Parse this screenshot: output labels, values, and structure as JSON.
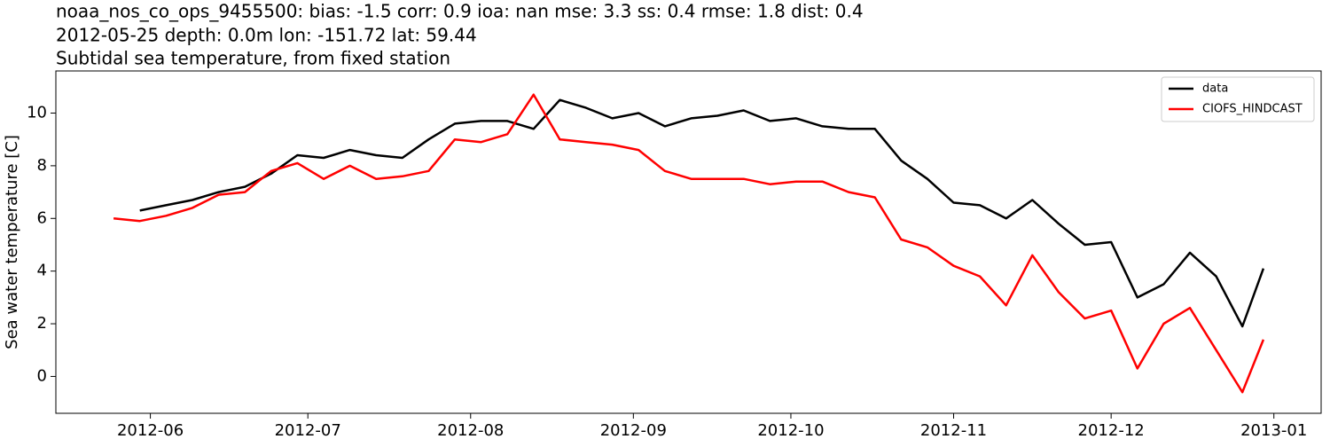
{
  "chart_data": {
    "type": "line",
    "title": "noaa_nos_co_ops_9455500: bias: -1.5  corr: 0.9  ioa: nan  mse: 3.3  ss: 0.4  rmse: 1.8  dist: 0.4",
    "subtitle": "2012-05-25 depth: 0.0m lon: -151.72 lat: 59.44",
    "subtitle2": "Subtidal sea temperature, from fixed station",
    "y_label": "Sea water temperature [C]",
    "legend": "upper right",
    "x": [
      "2012-05-25",
      "2012-05-30",
      "2012-06-04",
      "2012-06-09",
      "2012-06-14",
      "2012-06-19",
      "2012-06-24",
      "2012-06-29",
      "2012-07-04",
      "2012-07-09",
      "2012-07-14",
      "2012-07-19",
      "2012-07-24",
      "2012-07-29",
      "2012-08-03",
      "2012-08-08",
      "2012-08-13",
      "2012-08-18",
      "2012-08-23",
      "2012-08-28",
      "2012-09-02",
      "2012-09-07",
      "2012-09-12",
      "2012-09-17",
      "2012-09-22",
      "2012-09-27",
      "2012-10-02",
      "2012-10-07",
      "2012-10-12",
      "2012-10-17",
      "2012-10-22",
      "2012-10-27",
      "2012-11-01",
      "2012-11-06",
      "2012-11-11",
      "2012-11-16",
      "2012-11-21",
      "2012-11-26",
      "2012-12-01",
      "2012-12-06",
      "2012-12-11",
      "2012-12-16",
      "2012-12-21",
      "2012-12-26",
      "2012-12-30"
    ],
    "series": [
      {
        "name": "data",
        "color": "#000000",
        "values": [
          null,
          6.3,
          6.5,
          6.7,
          7.0,
          7.2,
          7.7,
          8.4,
          8.3,
          8.6,
          8.4,
          8.3,
          9.0,
          9.6,
          9.7,
          9.7,
          9.4,
          10.5,
          10.2,
          9.8,
          10.0,
          9.5,
          9.8,
          9.9,
          10.1,
          9.7,
          9.8,
          9.5,
          9.4,
          9.4,
          8.2,
          7.5,
          6.6,
          6.5,
          6.0,
          6.7,
          5.8,
          5.0,
          5.1,
          3.0,
          3.5,
          4.7,
          3.8,
          1.9,
          4.1
        ]
      },
      {
        "name": "CIOFS_HINDCAST",
        "color": "#ff0000",
        "values": [
          6.0,
          5.9,
          6.1,
          6.4,
          6.9,
          7.0,
          7.8,
          8.1,
          7.5,
          8.0,
          7.5,
          7.6,
          7.8,
          9.0,
          8.9,
          9.2,
          10.7,
          9.0,
          8.9,
          8.8,
          8.6,
          7.8,
          7.5,
          7.5,
          7.5,
          7.3,
          7.4,
          7.4,
          7.0,
          6.8,
          5.2,
          4.9,
          4.2,
          3.8,
          2.7,
          4.6,
          3.2,
          2.2,
          2.5,
          0.3,
          2.0,
          2.6,
          1.0,
          -0.6,
          1.4
        ]
      }
    ],
    "xlim": [
      "2012-05-14",
      "2013-01-10"
    ],
    "xticks": [
      {
        "value": "2012-06-01",
        "label": "2012-06"
      },
      {
        "value": "2012-07-01",
        "label": "2012-07"
      },
      {
        "value": "2012-08-01",
        "label": "2012-08"
      },
      {
        "value": "2012-09-01",
        "label": "2012-09"
      },
      {
        "value": "2012-10-01",
        "label": "2012-10"
      },
      {
        "value": "2012-11-01",
        "label": "2012-11"
      },
      {
        "value": "2012-12-01",
        "label": "2012-12"
      },
      {
        "value": "2013-01-01",
        "label": "2013-01"
      }
    ],
    "ylim": [
      -1.4,
      11.6
    ],
    "yticks": [
      0,
      2,
      4,
      6,
      8,
      10
    ],
    "grid": false
  }
}
